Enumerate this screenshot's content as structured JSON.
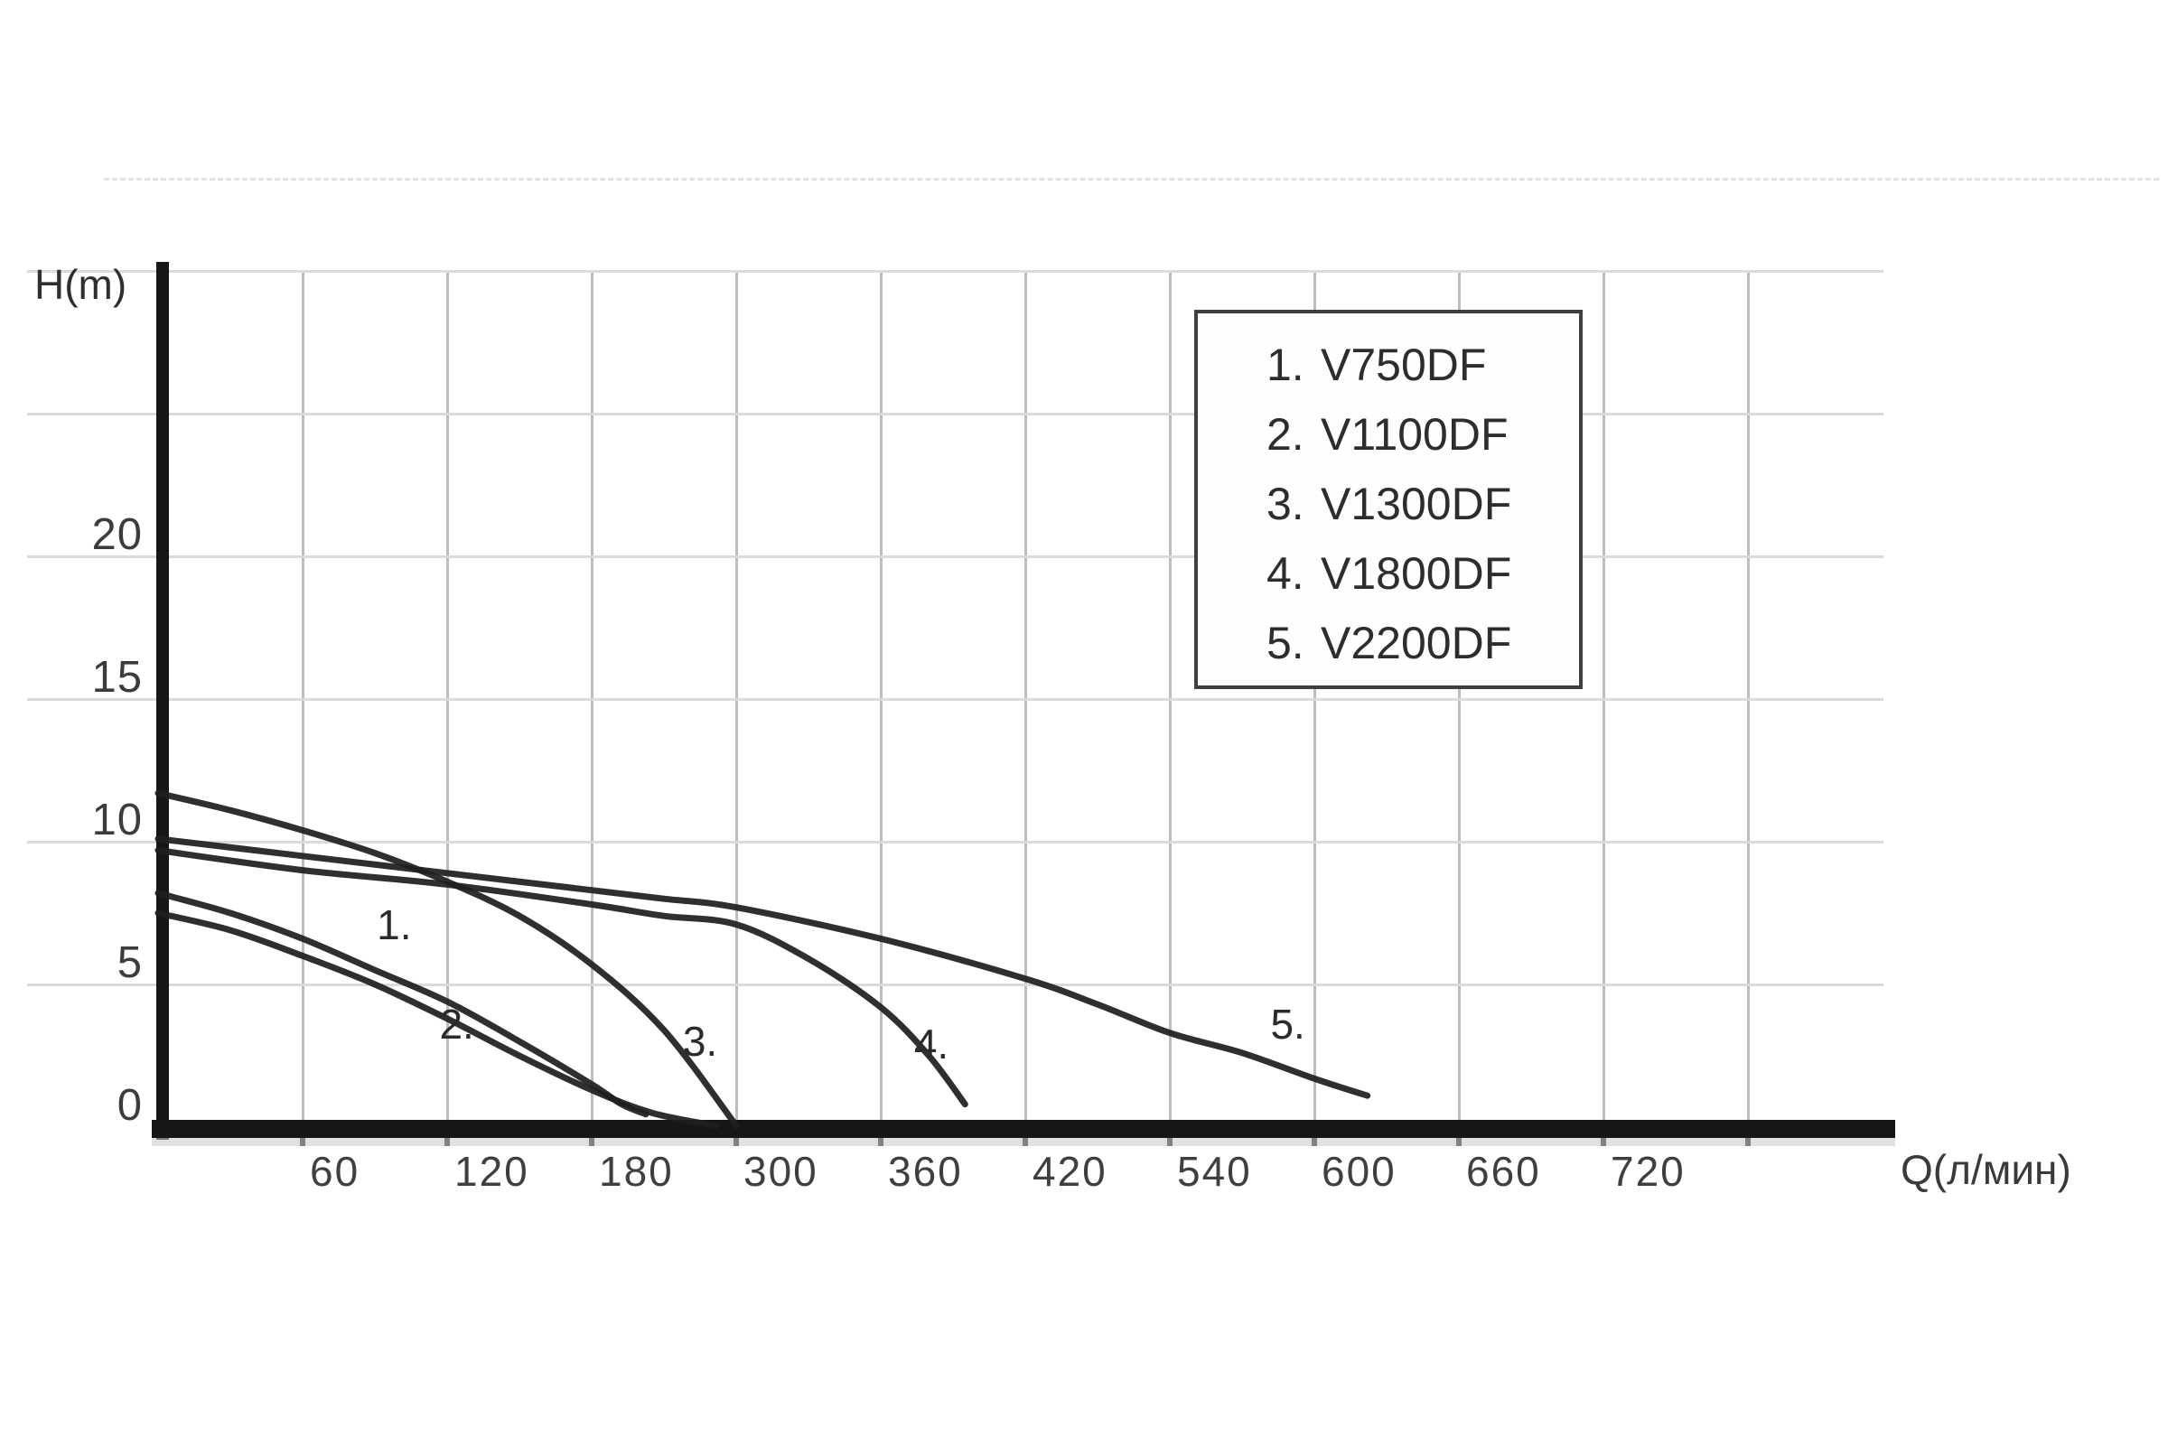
{
  "chart_data": {
    "type": "line",
    "title": "",
    "xlabel": "Q(л/мин)",
    "ylabel": "H(m)",
    "x_tick_labels": [
      "60",
      "120",
      "180",
      "300",
      "360",
      "420",
      "540",
      "600",
      "660",
      "720"
    ],
    "y_tick_labels": [
      "20",
      "15",
      "10",
      "5",
      "0"
    ],
    "y_tick_values": [
      20,
      15,
      10,
      5,
      0
    ],
    "ylim": [
      0,
      32
    ],
    "grid": "on",
    "legend_position": "upper-right-box",
    "note": "x axis labels skip 240 and 480; gridlines evenly spaced per printed label",
    "series": [
      {
        "name": "V750DF",
        "curve_number": "1.",
        "points": [
          [
            0,
            8.2
          ],
          [
            30,
            7.5
          ],
          [
            60,
            6.6
          ],
          [
            90,
            5.5
          ],
          [
            120,
            4.4
          ],
          [
            150,
            3.0
          ],
          [
            180,
            1.5
          ],
          [
            205,
            0.8
          ],
          [
            225,
            0.45
          ]
        ]
      },
      {
        "name": "V1100DF",
        "curve_number": "2.",
        "points": [
          [
            0,
            7.5
          ],
          [
            30,
            6.9
          ],
          [
            60,
            6.0
          ],
          [
            90,
            5.0
          ],
          [
            120,
            3.8
          ],
          [
            150,
            2.5
          ],
          [
            180,
            1.3
          ],
          [
            230,
            0.5
          ],
          [
            283,
            0.05
          ]
        ]
      },
      {
        "name": "V1300DF",
        "curve_number": "3.",
        "points": [
          [
            0,
            11.7
          ],
          [
            30,
            11.1
          ],
          [
            60,
            10.4
          ],
          [
            90,
            9.6
          ],
          [
            120,
            8.6
          ],
          [
            150,
            7.4
          ],
          [
            180,
            5.7
          ],
          [
            240,
            3.4
          ],
          [
            300,
            0.05
          ]
        ]
      },
      {
        "name": "V1800DF",
        "curve_number": "4.",
        "points": [
          [
            0,
            9.7
          ],
          [
            60,
            9.0
          ],
          [
            120,
            8.5
          ],
          [
            180,
            7.8
          ],
          [
            240,
            7.4
          ],
          [
            300,
            7.1
          ],
          [
            330,
            5.9
          ],
          [
            360,
            4.2
          ],
          [
            380,
            2.5
          ],
          [
            395,
            0.8
          ]
        ]
      },
      {
        "name": "V2200DF",
        "curve_number": "5.",
        "points": [
          [
            0,
            10.1
          ],
          [
            60,
            9.5
          ],
          [
            120,
            8.9
          ],
          [
            180,
            8.3
          ],
          [
            240,
            8.0
          ],
          [
            300,
            7.7
          ],
          [
            360,
            6.6
          ],
          [
            420,
            5.2
          ],
          [
            480,
            4.3
          ],
          [
            540,
            3.3
          ],
          [
            570,
            2.6
          ],
          [
            600,
            1.7
          ],
          [
            622,
            1.1
          ]
        ]
      }
    ],
    "annotations": [
      {
        "label": "1.",
        "q": 98,
        "h": 7.1
      },
      {
        "label": "2.",
        "q": 124,
        "h": 3.6
      },
      {
        "label": "3.",
        "q": 270,
        "h": 3.0
      },
      {
        "label": "4.",
        "q": 381,
        "h": 2.9
      },
      {
        "label": "5.",
        "q": 589,
        "h": 3.6
      }
    ],
    "legend": [
      {
        "num": "1.",
        "model": "V750DF"
      },
      {
        "num": "2.",
        "model": "V1100DF"
      },
      {
        "num": "3.",
        "model": "V1300DF"
      },
      {
        "num": "4.",
        "model": "V1800DF"
      },
      {
        "num": "5.",
        "model": "V2200DF"
      }
    ]
  },
  "colors": {
    "curve": "#1f1f1f",
    "axis": "#161616",
    "vgrid": "#bdbdbd",
    "hgrid": "#dadada",
    "text": "#3a3a3a"
  }
}
